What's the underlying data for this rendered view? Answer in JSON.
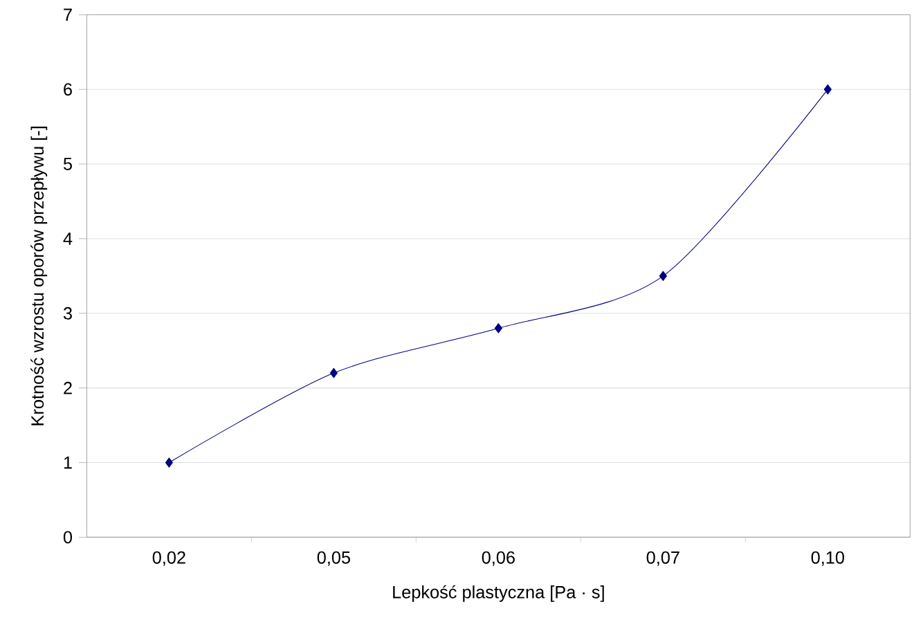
{
  "chart_data": {
    "type": "line",
    "xlabel": "Lepkość plastyczna [Pa · s]",
    "ylabel": "Krotność wzrostu oporów przepływu [-]",
    "categories": [
      "0,02",
      "0,05",
      "0,06",
      "0,07",
      "0,10"
    ],
    "series": [
      {
        "color": "#000080",
        "values": [
          1,
          2.2,
          2.8,
          3.5,
          6
        ]
      }
    ],
    "ylim": [
      0,
      7
    ],
    "yticks": [
      0,
      1,
      2,
      3,
      4,
      5,
      6,
      7
    ],
    "grid": "y",
    "marker": "diamond",
    "line_style": "solid"
  }
}
